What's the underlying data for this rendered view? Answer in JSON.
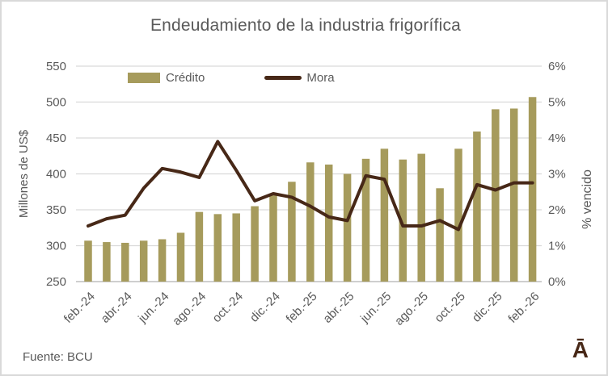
{
  "footer": {
    "source": "Fuente: BCU",
    "logo": "Ā"
  },
  "colors": {
    "bars": "#A69B5C",
    "line": "#472817",
    "text": "#595959",
    "grid": "#D9D9D9",
    "axis_line": "#BFBFBF",
    "border": "#D9D9D9",
    "logo": "#472817"
  },
  "chart_data": {
    "type": "bar",
    "title": "Endeudamiento de la industria frigorífica",
    "categories": [
      "feb.-24",
      "mar.-24",
      "abr.-24",
      "may.-24",
      "jun.-24",
      "jul.-24",
      "ago.-24",
      "sep.-24",
      "oct.-24",
      "nov.-24",
      "dic.-24",
      "ene.-25",
      "feb.-25",
      "mar.-25",
      "abr.-25",
      "may.-25",
      "jun.-25",
      "jul.-25",
      "ago.-25",
      "sep.-25",
      "oct.-25",
      "nov.-25",
      "dic.-25",
      "ene.-26",
      "feb.-26"
    ],
    "x_tick_labels_shown": [
      "feb.-24",
      "abr.-24",
      "jun.-24",
      "ago.-24",
      "oct.-24",
      "dic.-24",
      "feb.-25",
      "abr.-25",
      "jun.-25",
      "ago.-25",
      "oct.-25",
      "dic.-25",
      "feb.-26"
    ],
    "series": [
      {
        "name": "Crédito",
        "type": "bar",
        "axis": "left",
        "color": "#A69B5C",
        "values": [
          307,
          305,
          304,
          307,
          309,
          318,
          347,
          344,
          345,
          355,
          371,
          389,
          416,
          413,
          400,
          421,
          435,
          420,
          428,
          380,
          435,
          459,
          490,
          491,
          507
        ]
      },
      {
        "name": "Mora",
        "type": "line",
        "axis": "right",
        "color": "#472817",
        "values": [
          1.55,
          1.75,
          1.85,
          2.6,
          3.15,
          3.05,
          2.9,
          3.9,
          3.1,
          2.25,
          2.45,
          2.35,
          2.1,
          1.8,
          1.7,
          2.95,
          2.85,
          1.55,
          1.55,
          1.7,
          1.45,
          2.7,
          2.55,
          2.75,
          2.75
        ]
      }
    ],
    "left_axis": {
      "label": "Millones de US$",
      "min": 250,
      "max": 550,
      "step": 50,
      "ticks": [
        250,
        300,
        350,
        400,
        450,
        500,
        550
      ]
    },
    "right_axis": {
      "label": "% vencido",
      "min": 0,
      "max": 6,
      "step": 1,
      "tick_labels": [
        "0%",
        "1%",
        "2%",
        "3%",
        "4%",
        "5%",
        "6%"
      ]
    },
    "grid": true,
    "legend_position": "top"
  }
}
